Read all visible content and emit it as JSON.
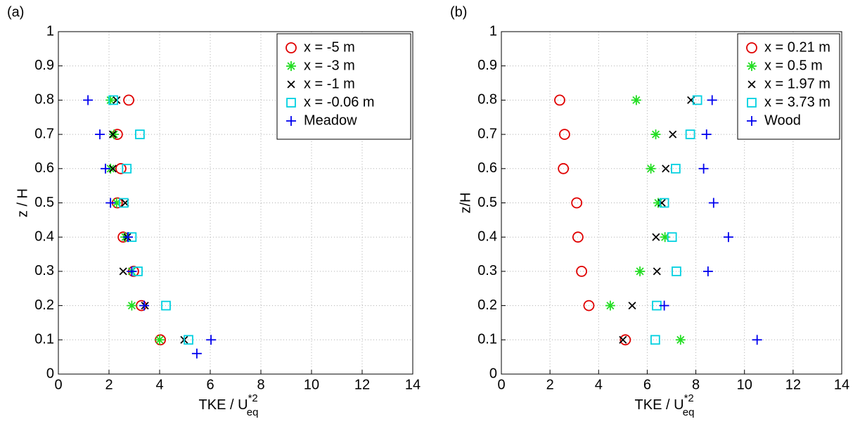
{
  "chart_data": [
    {
      "type": "scatter",
      "panel_label": "(a)",
      "x_label": "TKE / U",
      "x_label_sup": "*2",
      "x_label_sub": "eq",
      "y_label": "z / H",
      "xlim": [
        0,
        14
      ],
      "ylim": [
        0,
        1
      ],
      "xticks": [
        0,
        2,
        4,
        6,
        8,
        10,
        12,
        14
      ],
      "yticks": [
        0,
        0.1,
        0.2,
        0.3,
        0.4,
        0.5,
        0.6,
        0.7,
        0.8,
        0.9,
        1
      ],
      "grid": true,
      "legend": "upper right",
      "series": [
        {
          "name": "x = -5 m",
          "color": "#e00000",
          "marker": "circle",
          "x": [
            2.78,
            2.33,
            2.47,
            2.33,
            2.56,
            2.97,
            3.28,
            4.03
          ],
          "y": [
            0.8,
            0.7,
            0.6,
            0.5,
            0.4,
            0.3,
            0.2,
            0.1
          ]
        },
        {
          "name": "x = -3 m",
          "color": "#22dd22",
          "marker": "asterisk",
          "x": [
            2.06,
            2.2,
            2.06,
            2.3,
            2.64,
            2.9,
            2.9,
            4.0
          ],
          "y": [
            0.8,
            0.7,
            0.6,
            0.5,
            0.4,
            0.3,
            0.2,
            0.1
          ]
        },
        {
          "name": "x = -1 m",
          "color": "#000000",
          "marker": "x",
          "x": [
            2.3,
            2.15,
            2.15,
            2.64,
            2.72,
            2.56,
            3.42,
            4.97
          ],
          "y": [
            0.8,
            0.7,
            0.6,
            0.5,
            0.4,
            0.3,
            0.2,
            0.1
          ]
        },
        {
          "name": "x = -0.06 m",
          "color": "#00d0e0",
          "marker": "square",
          "x": [
            2.17,
            3.22,
            2.7,
            2.58,
            2.9,
            3.14,
            4.25,
            5.14
          ],
          "y": [
            0.8,
            0.7,
            0.6,
            0.5,
            0.4,
            0.3,
            0.2,
            0.1
          ]
        },
        {
          "name": "Meadow",
          "color": "#0000ee",
          "marker": "plus",
          "x": [
            1.17,
            1.64,
            1.86,
            2.06,
            2.75,
            2.9,
            3.39,
            6.03,
            5.47
          ],
          "y": [
            0.8,
            0.7,
            0.6,
            0.5,
            0.4,
            0.3,
            0.2,
            0.1,
            0.06
          ]
        }
      ]
    },
    {
      "type": "scatter",
      "panel_label": "(b)",
      "x_label": "TKE / U",
      "x_label_sup": "*2",
      "x_label_sub": "eq",
      "y_label": "z/H",
      "xlim": [
        0,
        14
      ],
      "ylim": [
        0,
        1
      ],
      "xticks": [
        0,
        2,
        4,
        6,
        8,
        10,
        12,
        14
      ],
      "yticks": [
        0,
        0.1,
        0.2,
        0.3,
        0.4,
        0.5,
        0.6,
        0.7,
        0.8,
        0.9,
        1
      ],
      "grid": true,
      "legend": "upper right",
      "series": [
        {
          "name": "x = 0.21 m",
          "color": "#e00000",
          "marker": "circle",
          "x": [
            2.4,
            2.6,
            2.55,
            3.1,
            3.15,
            3.3,
            3.6,
            5.1
          ],
          "y": [
            0.8,
            0.7,
            0.6,
            0.5,
            0.4,
            0.3,
            0.2,
            0.1
          ]
        },
        {
          "name": "x = 0.5 m",
          "color": "#22dd22",
          "marker": "asterisk",
          "x": [
            5.55,
            6.35,
            6.15,
            6.45,
            6.73,
            5.7,
            4.48,
            7.37
          ],
          "y": [
            0.8,
            0.7,
            0.6,
            0.5,
            0.4,
            0.3,
            0.2,
            0.1
          ]
        },
        {
          "name": "x = 1.97 m",
          "color": "#000000",
          "marker": "x",
          "x": [
            7.8,
            7.05,
            6.76,
            6.6,
            6.36,
            6.4,
            5.38,
            5.0
          ],
          "y": [
            0.8,
            0.7,
            0.6,
            0.5,
            0.4,
            0.3,
            0.2,
            0.1
          ]
        },
        {
          "name": "x = 3.73 m",
          "color": "#00d0e0",
          "marker": "square",
          "x": [
            8.06,
            7.77,
            7.17,
            6.7,
            7.02,
            7.2,
            6.39,
            6.33
          ],
          "y": [
            0.8,
            0.7,
            0.6,
            0.5,
            0.4,
            0.3,
            0.2,
            0.1
          ]
        },
        {
          "name": "Wood",
          "color": "#0000ee",
          "marker": "plus",
          "x": [
            8.67,
            8.44,
            8.32,
            8.73,
            9.34,
            8.5,
            6.7,
            10.52
          ],
          "y": [
            0.8,
            0.7,
            0.6,
            0.5,
            0.4,
            0.3,
            0.2,
            0.1
          ]
        }
      ]
    }
  ]
}
